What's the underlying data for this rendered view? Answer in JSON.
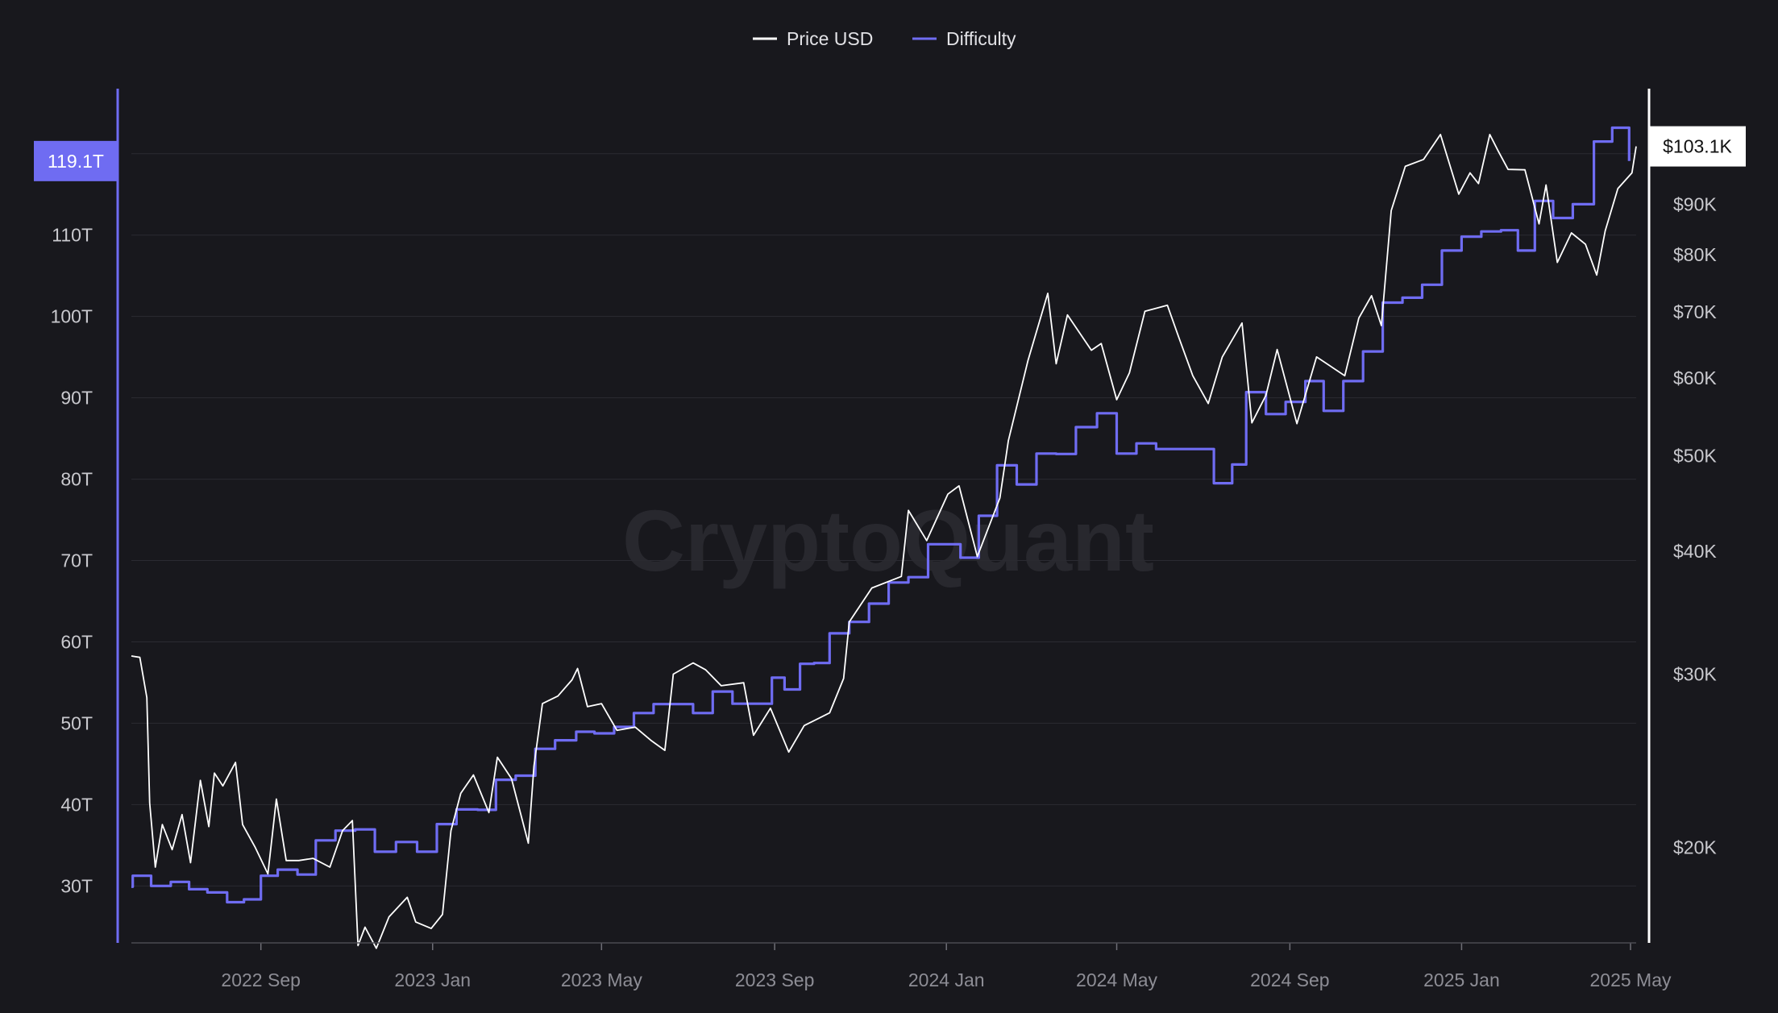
{
  "chart_data": {
    "type": "line",
    "watermark": "CryptoQuant",
    "legend": {
      "placement": "top-center",
      "items": [
        {
          "label": "Price USD",
          "color": "#ffffff"
        },
        {
          "label": "Difficulty",
          "color": "#6f6cf2"
        }
      ]
    },
    "x_axis": {
      "range": [
        "2022-06-01",
        "2025-05-05"
      ],
      "ticks": [
        {
          "date": "2022-09-01",
          "label": "2022 Sep"
        },
        {
          "date": "2023-01-01",
          "label": "2023 Jan"
        },
        {
          "date": "2023-05-01",
          "label": "2023 May"
        },
        {
          "date": "2023-09-01",
          "label": "2023 Sep"
        },
        {
          "date": "2024-01-01",
          "label": "2024 Jan"
        },
        {
          "date": "2024-05-01",
          "label": "2024 May"
        },
        {
          "date": "2024-09-01",
          "label": "2024 Sep"
        },
        {
          "date": "2025-01-01",
          "label": "2025 Jan"
        },
        {
          "date": "2025-05-01",
          "label": "2025 May"
        }
      ]
    },
    "y_left": {
      "name": "Difficulty",
      "scale": "linear",
      "range": [
        23,
        128
      ],
      "ticks": [
        {
          "value": 30,
          "label": "30T"
        },
        {
          "value": 40,
          "label": "40T"
        },
        {
          "value": 50,
          "label": "50T"
        },
        {
          "value": 60,
          "label": "60T"
        },
        {
          "value": 70,
          "label": "70T"
        },
        {
          "value": 80,
          "label": "80T"
        },
        {
          "value": 90,
          "label": "90T"
        },
        {
          "value": 100,
          "label": "100T"
        },
        {
          "value": 110,
          "label": "110T"
        }
      ],
      "current_value": 119.1,
      "current_label": "119.1T"
    },
    "y_right": {
      "name": "Price USD",
      "scale": "log",
      "range": [
        16000,
        118000
      ],
      "ticks": [
        {
          "value": 20000,
          "label": "$20K"
        },
        {
          "value": 30000,
          "label": "$30K"
        },
        {
          "value": 40000,
          "label": "$40K"
        },
        {
          "value": 50000,
          "label": "$50K"
        },
        {
          "value": 60000,
          "label": "$60K"
        },
        {
          "value": 70000,
          "label": "$70K"
        },
        {
          "value": 80000,
          "label": "$80K"
        },
        {
          "value": 90000,
          "label": "$90K"
        }
      ],
      "current_value": 103100,
      "current_label": "$103.1K"
    },
    "series": [
      {
        "name": "Difficulty",
        "axis": "left",
        "color": "#6f6cf2",
        "step": true,
        "points": [
          [
            "2022-06-01",
            29.9
          ],
          [
            "2022-06-02",
            31.25
          ],
          [
            "2022-06-15",
            30.0
          ],
          [
            "2022-06-29",
            30.5
          ],
          [
            "2022-07-12",
            29.6
          ],
          [
            "2022-07-25",
            29.2
          ],
          [
            "2022-08-08",
            28.0
          ],
          [
            "2022-08-20",
            28.35
          ],
          [
            "2022-09-01",
            31.25
          ],
          [
            "2022-09-13",
            32.0
          ],
          [
            "2022-09-27",
            31.4
          ],
          [
            "2022-10-10",
            35.6
          ],
          [
            "2022-10-24",
            36.8
          ],
          [
            "2022-11-07",
            36.95
          ],
          [
            "2022-11-21",
            34.2
          ],
          [
            "2022-12-06",
            35.4
          ],
          [
            "2022-12-21",
            34.2
          ],
          [
            "2023-01-04",
            37.6
          ],
          [
            "2023-01-18",
            39.4
          ],
          [
            "2023-02-02",
            39.35
          ],
          [
            "2023-02-15",
            43.05
          ],
          [
            "2023-03-01",
            43.55
          ],
          [
            "2023-03-15",
            46.85
          ],
          [
            "2023-03-29",
            47.9
          ],
          [
            "2023-04-13",
            48.95
          ],
          [
            "2023-04-26",
            48.75
          ],
          [
            "2023-05-10",
            49.55
          ],
          [
            "2023-05-24",
            51.25
          ],
          [
            "2023-06-07",
            52.35
          ],
          [
            "2023-06-21",
            52.35
          ],
          [
            "2023-07-05",
            51.25
          ],
          [
            "2023-07-19",
            53.9
          ],
          [
            "2023-08-02",
            52.4
          ],
          [
            "2023-08-16",
            52.4
          ],
          [
            "2023-08-30",
            55.6
          ],
          [
            "2023-09-08",
            54.15
          ],
          [
            "2023-09-19",
            57.3
          ],
          [
            "2023-09-29",
            57.4
          ],
          [
            "2023-10-10",
            61.05
          ],
          [
            "2023-10-24",
            62.45
          ],
          [
            "2023-11-07",
            64.7
          ],
          [
            "2023-11-21",
            67.3
          ],
          [
            "2023-12-05",
            67.95
          ],
          [
            "2023-12-19",
            72.0
          ],
          [
            "2024-01-02",
            72.0
          ],
          [
            "2024-01-11",
            70.35
          ],
          [
            "2024-01-24",
            75.5
          ],
          [
            "2024-02-06",
            81.7
          ],
          [
            "2024-02-20",
            79.35
          ],
          [
            "2024-03-05",
            83.15
          ],
          [
            "2024-03-19",
            83.1
          ],
          [
            "2024-04-02",
            86.4
          ],
          [
            "2024-04-17",
            88.1
          ],
          [
            "2024-05-01",
            83.15
          ],
          [
            "2024-05-15",
            84.4
          ],
          [
            "2024-05-29",
            83.7
          ],
          [
            "2024-06-12",
            83.7
          ],
          [
            "2024-06-26",
            83.7
          ],
          [
            "2024-07-09",
            79.5
          ],
          [
            "2024-07-22",
            81.8
          ],
          [
            "2024-08-01",
            90.7
          ],
          [
            "2024-08-15",
            88.0
          ],
          [
            "2024-08-29",
            89.5
          ],
          [
            "2024-09-12",
            92.05
          ],
          [
            "2024-09-25",
            88.4
          ],
          [
            "2024-10-09",
            92.05
          ],
          [
            "2024-10-23",
            95.7
          ],
          [
            "2024-11-06",
            101.7
          ],
          [
            "2024-11-20",
            102.3
          ],
          [
            "2024-12-04",
            103.9
          ],
          [
            "2024-12-18",
            108.1
          ],
          [
            "2025-01-01",
            109.8
          ],
          [
            "2025-01-15",
            110.45
          ],
          [
            "2025-01-29",
            110.6
          ],
          [
            "2025-02-10",
            108.1
          ],
          [
            "2025-02-22",
            114.2
          ],
          [
            "2025-03-07",
            112.1
          ],
          [
            "2025-03-21",
            113.8
          ],
          [
            "2025-04-05",
            121.5
          ],
          [
            "2025-04-18",
            123.2
          ],
          [
            "2025-04-30",
            119.1
          ]
        ]
      },
      {
        "name": "Price USD",
        "axis": "right",
        "color": "#ffffff",
        "step": false,
        "points": [
          [
            "2022-06-01",
            31300
          ],
          [
            "2022-06-07",
            31200
          ],
          [
            "2022-06-12",
            28400
          ],
          [
            "2022-06-14",
            22200
          ],
          [
            "2022-06-18",
            19100
          ],
          [
            "2022-06-23",
            21100
          ],
          [
            "2022-06-30",
            19900
          ],
          [
            "2022-07-07",
            21600
          ],
          [
            "2022-07-13",
            19300
          ],
          [
            "2022-07-20",
            23400
          ],
          [
            "2022-07-26",
            21000
          ],
          [
            "2022-07-30",
            23800
          ],
          [
            "2022-08-05",
            23100
          ],
          [
            "2022-08-14",
            24400
          ],
          [
            "2022-08-19",
            21100
          ],
          [
            "2022-08-28",
            20000
          ],
          [
            "2022-09-06",
            18800
          ],
          [
            "2022-09-12",
            22400
          ],
          [
            "2022-09-19",
            19400
          ],
          [
            "2022-09-28",
            19400
          ],
          [
            "2022-10-08",
            19500
          ],
          [
            "2022-10-20",
            19100
          ],
          [
            "2022-10-29",
            20800
          ],
          [
            "2022-11-05",
            21300
          ],
          [
            "2022-11-09",
            15900
          ],
          [
            "2022-11-14",
            16600
          ],
          [
            "2022-11-22",
            15800
          ],
          [
            "2022-12-01",
            17000
          ],
          [
            "2022-12-14",
            17800
          ],
          [
            "2022-12-20",
            16800
          ],
          [
            "2022-12-31",
            16550
          ],
          [
            "2023-01-08",
            17100
          ],
          [
            "2023-01-14",
            20800
          ],
          [
            "2023-01-21",
            22700
          ],
          [
            "2023-01-30",
            23700
          ],
          [
            "2023-02-10",
            21700
          ],
          [
            "2023-02-16",
            24700
          ],
          [
            "2023-02-26",
            23500
          ],
          [
            "2023-03-10",
            20200
          ],
          [
            "2023-03-14",
            24200
          ],
          [
            "2023-03-20",
            28000
          ],
          [
            "2023-03-31",
            28500
          ],
          [
            "2023-04-10",
            29600
          ],
          [
            "2023-04-14",
            30400
          ],
          [
            "2023-04-21",
            27800
          ],
          [
            "2023-05-01",
            28000
          ],
          [
            "2023-05-12",
            26300
          ],
          [
            "2023-05-25",
            26500
          ],
          [
            "2023-06-05",
            25700
          ],
          [
            "2023-06-15",
            25100
          ],
          [
            "2023-06-21",
            30000
          ],
          [
            "2023-07-05",
            30800
          ],
          [
            "2023-07-14",
            30300
          ],
          [
            "2023-07-25",
            29200
          ],
          [
            "2023-08-10",
            29400
          ],
          [
            "2023-08-17",
            26000
          ],
          [
            "2023-08-29",
            27700
          ],
          [
            "2023-09-11",
            25000
          ],
          [
            "2023-09-22",
            26600
          ],
          [
            "2023-10-10",
            27400
          ],
          [
            "2023-10-20",
            29700
          ],
          [
            "2023-10-24",
            33900
          ],
          [
            "2023-11-09",
            36700
          ],
          [
            "2023-11-30",
            37700
          ],
          [
            "2023-12-05",
            44000
          ],
          [
            "2023-12-18",
            41000
          ],
          [
            "2024-01-02",
            45700
          ],
          [
            "2024-01-10",
            46600
          ],
          [
            "2024-01-23",
            39500
          ],
          [
            "2024-02-08",
            45300
          ],
          [
            "2024-02-14",
            51800
          ],
          [
            "2024-02-28",
            62500
          ],
          [
            "2024-03-13",
            73100
          ],
          [
            "2024-03-19",
            62000
          ],
          [
            "2024-03-27",
            69500
          ],
          [
            "2024-04-13",
            64000
          ],
          [
            "2024-04-20",
            65000
          ],
          [
            "2024-05-01",
            57000
          ],
          [
            "2024-05-10",
            60700
          ],
          [
            "2024-05-21",
            70100
          ],
          [
            "2024-06-06",
            71100
          ],
          [
            "2024-06-14",
            66000
          ],
          [
            "2024-06-24",
            60300
          ],
          [
            "2024-07-05",
            56500
          ],
          [
            "2024-07-15",
            63000
          ],
          [
            "2024-07-29",
            68200
          ],
          [
            "2024-08-05",
            54000
          ],
          [
            "2024-08-15",
            57600
          ],
          [
            "2024-08-23",
            64100
          ],
          [
            "2024-09-06",
            53900
          ],
          [
            "2024-09-20",
            63000
          ],
          [
            "2024-10-10",
            60300
          ],
          [
            "2024-10-20",
            69000
          ],
          [
            "2024-10-29",
            72700
          ],
          [
            "2024-11-05",
            67800
          ],
          [
            "2024-11-12",
            88700
          ],
          [
            "2024-11-22",
            98400
          ],
          [
            "2024-12-05",
            100000
          ],
          [
            "2024-12-17",
            106000
          ],
          [
            "2024-12-30",
            92200
          ],
          [
            "2025-01-07",
            96900
          ],
          [
            "2025-01-13",
            94500
          ],
          [
            "2025-01-21",
            106000
          ],
          [
            "2025-01-27",
            102000
          ],
          [
            "2025-02-03",
            97700
          ],
          [
            "2025-02-15",
            97600
          ],
          [
            "2025-02-25",
            86000
          ],
          [
            "2025-03-02",
            94200
          ],
          [
            "2025-03-10",
            78600
          ],
          [
            "2025-03-20",
            84200
          ],
          [
            "2025-03-30",
            82000
          ],
          [
            "2025-04-07",
            76300
          ],
          [
            "2025-04-13",
            84600
          ],
          [
            "2025-04-22",
            93400
          ],
          [
            "2025-05-02",
            96900
          ],
          [
            "2025-05-05",
            103100
          ]
        ]
      }
    ]
  }
}
